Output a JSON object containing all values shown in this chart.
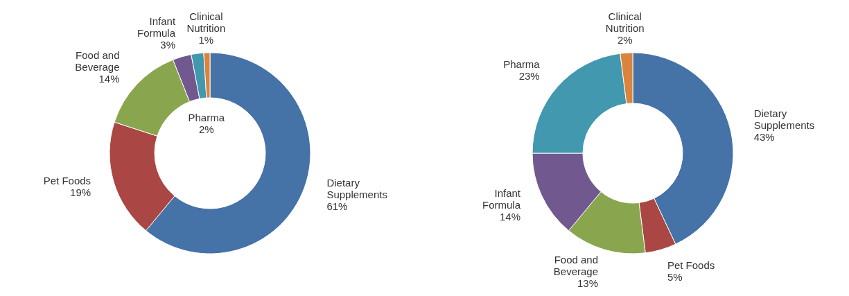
{
  "chart_data": [
    {
      "type": "donut",
      "categories": [
        "Dietary Supplements",
        "Pet Foods",
        "Food and Beverage",
        "Infant Formula",
        "Pharma",
        "Clinical Nutrition"
      ],
      "values": [
        61,
        19,
        14,
        3,
        2,
        1
      ],
      "value_labels": [
        "61%",
        "19%",
        "14%",
        "3%",
        "2%",
        "1%"
      ],
      "colors": [
        "#4572a7",
        "#aa4643",
        "#89a54e",
        "#71588f",
        "#4198af",
        "#db843d"
      ]
    },
    {
      "type": "donut",
      "categories": [
        "Dietary Supplements",
        "Pet Foods",
        "Food and Beverage",
        "Infant Formula",
        "Pharma",
        "Clinical Nutrition"
      ],
      "values": [
        43,
        5,
        13,
        14,
        23,
        2
      ],
      "value_labels": [
        "43%",
        "5%",
        "13%",
        "14%",
        "23%",
        "2%"
      ],
      "colors": [
        "#4572a7",
        "#aa4643",
        "#89a54e",
        "#71588f",
        "#4198af",
        "#db843d"
      ]
    }
  ]
}
